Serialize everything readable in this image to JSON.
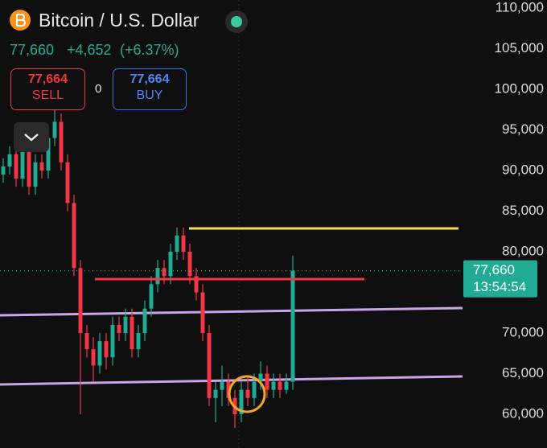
{
  "header": {
    "title": "Bitcoin / U.S. Dollar",
    "price": "77,660",
    "change": "+4,652",
    "change_pct": "(+6.37%)",
    "sell_price": "77,664",
    "sell_label": "SELL",
    "spread": "0",
    "buy_price": "77,664",
    "buy_label": "BUY"
  },
  "chart_data": {
    "type": "candlestick",
    "up_color": "#22ab94",
    "down_color": "#f23645",
    "open": [
      89500,
      90500,
      92000,
      89000,
      93000,
      88000,
      91000,
      90000,
      94000,
      96000,
      91000,
      86000,
      78000,
      70000,
      68000,
      66000,
      69000,
      67000,
      71000,
      70000,
      72000,
      68000,
      70000,
      73000,
      76000,
      78000,
      77000,
      80000,
      82000,
      80000,
      77000,
      75000,
      70000,
      62000,
      63000,
      64000,
      62000,
      60000,
      63000,
      62000,
      64000,
      65000,
      63000,
      64000,
      63000,
      64000
    ],
    "high": [
      91500,
      93000,
      93000,
      94000,
      94000,
      92000,
      92000,
      95000,
      97500,
      97000,
      92000,
      87000,
      79000,
      71000,
      69500,
      70000,
      70000,
      72000,
      72000,
      73000,
      73000,
      71000,
      74000,
      77000,
      79000,
      79000,
      81000,
      83000,
      83000,
      81000,
      78000,
      76000,
      71000,
      64000,
      66000,
      65000,
      63000,
      64000,
      64500,
      65000,
      66500,
      66000,
      65000,
      65000,
      65000,
      79500
    ],
    "low": [
      88500,
      89500,
      88000,
      88000,
      87000,
      87000,
      89000,
      89000,
      93000,
      90000,
      85000,
      77000,
      60000,
      67000,
      64000,
      65000,
      65500,
      66000,
      69000,
      69000,
      67000,
      67000,
      69000,
      72000,
      75000,
      76000,
      76000,
      79000,
      79000,
      76000,
      74000,
      69000,
      61000,
      59000,
      61000,
      61000,
      58300,
      59000,
      61000,
      61000,
      63000,
      62000,
      62000,
      62000,
      62500,
      63000
    ],
    "close": [
      90500,
      92000,
      89000,
      93000,
      88000,
      91000,
      90000,
      94000,
      96000,
      91000,
      86000,
      78000,
      70000,
      68000,
      66000,
      69000,
      67000,
      71000,
      70000,
      72000,
      68000,
      70000,
      73000,
      76000,
      78000,
      77000,
      80000,
      82000,
      80000,
      77000,
      75000,
      70000,
      62000,
      63000,
      64000,
      62000,
      60000,
      63000,
      62000,
      64000,
      65000,
      63000,
      64000,
      63000,
      64000,
      77660
    ],
    "ylim": [
      55840,
      110990
    ],
    "yticks": [
      {
        "value": 60000,
        "label": "60,000"
      },
      {
        "value": 65000,
        "label": "65,000"
      },
      {
        "value": 70000,
        "label": "70,000"
      },
      {
        "value": 80000,
        "label": "80,000"
      },
      {
        "value": 85000,
        "label": "85,000"
      },
      {
        "value": 90000,
        "label": "90,000"
      },
      {
        "value": 95000,
        "label": "95,000"
      },
      {
        "value": 100000,
        "label": "100,000"
      },
      {
        "value": 105000,
        "label": "105,000"
      },
      {
        "value": 110000,
        "label": "110,000"
      }
    ],
    "grid": false,
    "last_price": {
      "value": 77660,
      "label": "77,660",
      "time": "13:54:54",
      "color": "#22ab94"
    },
    "levels": [
      {
        "value": 82870,
        "color": "#f2e14c"
      },
      {
        "value": 76630,
        "color": "#f23645"
      }
    ],
    "trend_lines": [
      {
        "values": [
          72180,
          73070
        ],
        "color": "#c9a6e8"
      },
      {
        "values": [
          63660,
          64650
        ],
        "color": "#c9a6e8"
      }
    ]
  }
}
